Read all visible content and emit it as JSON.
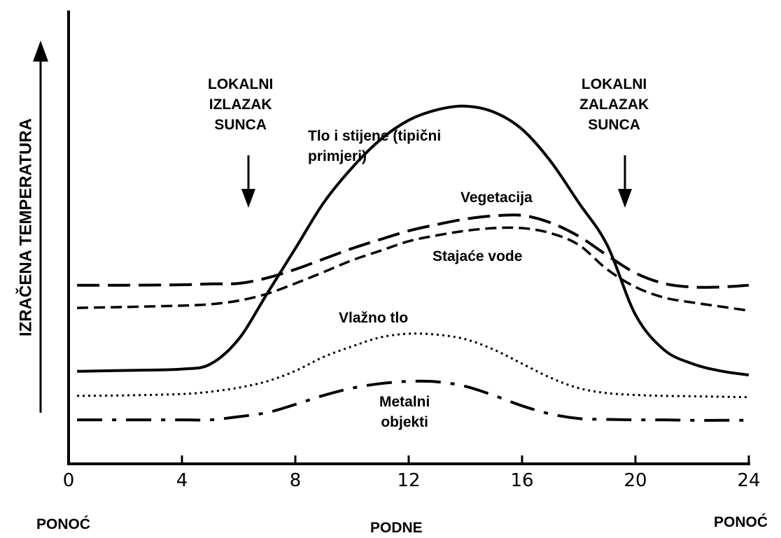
{
  "chart_data": {
    "type": "line",
    "y_label": "IZRAČENA TEMPERATURA",
    "xlim": [
      0,
      24
    ],
    "xticks": [
      0,
      4,
      8,
      12,
      16,
      20,
      24
    ],
    "ylim": [
      0,
      100
    ],
    "x": [
      0.3,
      2,
      4,
      5,
      6,
      7,
      8,
      9,
      10,
      11,
      12,
      13,
      14,
      15,
      16,
      17,
      18,
      19,
      20,
      21,
      22,
      23,
      24
    ],
    "series": [
      {
        "name": "Tlo i stijene (tipični primjeri)",
        "color": "#000000",
        "style": "solid",
        "values": [
          20.4,
          20.6,
          20.9,
          22.0,
          27.5,
          37.5,
          47.5,
          57.6,
          65.3,
          71.5,
          75.8,
          78.1,
          78.9,
          77.6,
          73.8,
          66.8,
          57.6,
          48.3,
          32.9,
          25.2,
          22.1,
          20.5,
          19.6
        ]
      },
      {
        "name": "Vegetacija",
        "color": "#000000",
        "style": "long-dash",
        "values": [
          39.4,
          39.4,
          39.5,
          39.7,
          39.8,
          41.0,
          42.9,
          45.2,
          47.5,
          49.5,
          51.4,
          52.8,
          54.0,
          54.7,
          54.8,
          53.2,
          50.2,
          46.0,
          42.1,
          39.8,
          39.0,
          39.0,
          39.4
        ]
      },
      {
        "name": "Stajaće vode",
        "color": "#000000",
        "style": "dash",
        "values": [
          34.4,
          34.6,
          34.9,
          35.2,
          36.0,
          37.5,
          39.8,
          42.3,
          44.9,
          47.0,
          49.1,
          50.4,
          51.4,
          52.0,
          52.0,
          50.9,
          48.3,
          42.9,
          39.0,
          36.7,
          35.6,
          34.7,
          33.8
        ]
      },
      {
        "name": "Vlažno tlo",
        "color": "#000000",
        "style": "dot",
        "values": [
          15.0,
          15.1,
          15.4,
          15.9,
          16.8,
          18.2,
          20.5,
          23.6,
          25.9,
          27.9,
          28.7,
          28.5,
          27.5,
          25.2,
          22.1,
          19.0,
          16.7,
          15.6,
          15.2,
          15.0,
          14.9,
          14.8,
          14.7
        ]
      },
      {
        "name": "Metalni objekti",
        "color": "#000000",
        "style": "dash-dot",
        "values": [
          9.7,
          9.7,
          9.7,
          9.7,
          10.4,
          11.3,
          13.1,
          15.1,
          16.7,
          17.7,
          18.2,
          18.1,
          17.1,
          15.1,
          12.8,
          11.0,
          10.0,
          9.8,
          9.7,
          9.7,
          9.6,
          9.6,
          9.6
        ]
      }
    ],
    "annotations": [
      "LOKALNI IZLAZAK SUNCA",
      "LOKALNI ZALAZAK SUNCA",
      "PONOĆ",
      "PODNE",
      "PONOĆ"
    ]
  }
}
